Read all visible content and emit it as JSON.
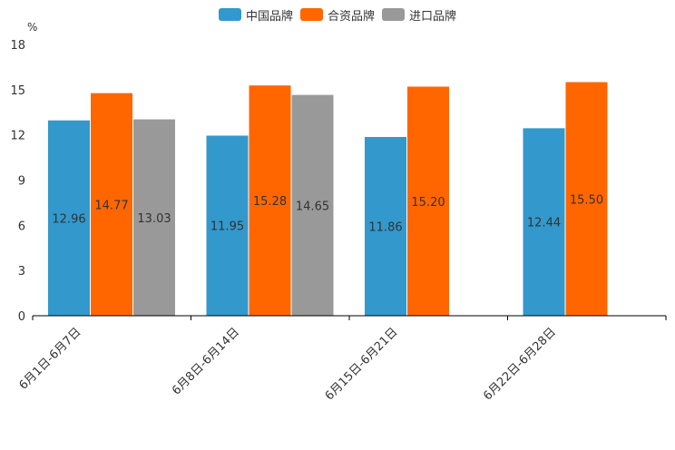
{
  "chart_data": {
    "type": "bar",
    "unit": "%",
    "categories": [
      "6月1日-6月7日",
      "6月8日-6月14日",
      "6月15日-6月21日",
      "6月22日-6月28日"
    ],
    "series": [
      {
        "name": "中国品牌",
        "color": "#3398CC",
        "values": [
          12.96,
          11.95,
          11.86,
          12.44
        ]
      },
      {
        "name": "合资品牌",
        "color": "#FF6600",
        "values": [
          14.77,
          15.28,
          15.2,
          15.5
        ]
      },
      {
        "name": "进口品牌",
        "color": "#999999",
        "values": [
          13.03,
          14.65,
          null,
          null
        ]
      }
    ],
    "ylim": [
      0,
      18
    ],
    "yticks": [
      0,
      3,
      6,
      9,
      12,
      15,
      18
    ],
    "legend_position": "top-center",
    "grid": false
  }
}
